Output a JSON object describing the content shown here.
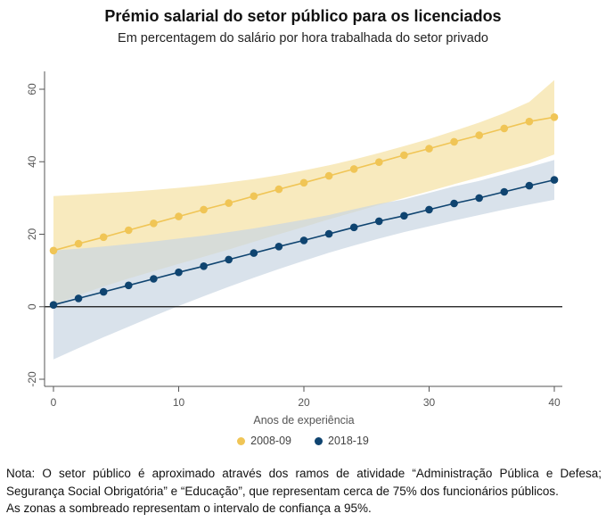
{
  "title": "Prémio salarial do setor público para os licenciados",
  "subtitle": "Em percentagem do salário por hora trabalhada do setor privado",
  "chart_data": {
    "type": "line",
    "xlabel": "Anos de experiência",
    "ylabel": "",
    "xlim": [
      0,
      40
    ],
    "ylim": [
      -22,
      65
    ],
    "xticks": [
      0,
      10,
      20,
      30,
      40
    ],
    "yticks": [
      -20,
      0,
      20,
      40,
      60
    ],
    "x": [
      0,
      2,
      4,
      6,
      8,
      10,
      12,
      14,
      16,
      18,
      20,
      22,
      24,
      26,
      28,
      30,
      32,
      34,
      36,
      38,
      40
    ],
    "series": [
      {
        "name": "2008-09",
        "color": "#f0c556",
        "band_color": "#f7e6b3",
        "values": [
          15.5,
          17.4,
          19.2,
          21.1,
          23.0,
          24.9,
          26.8,
          28.6,
          30.5,
          32.4,
          34.2,
          36.1,
          38.0,
          39.9,
          41.8,
          43.6,
          45.5,
          47.3,
          49.2,
          51.1,
          52.3
        ],
        "ci_lower": [
          0.5,
          3.2,
          5.6,
          7.8,
          9.8,
          11.8,
          13.8,
          15.8,
          17.9,
          20.0,
          22.0,
          24.1,
          26.1,
          28.1,
          30.0,
          31.9,
          33.8,
          35.7,
          37.6,
          39.5,
          42.0
        ],
        "ci_upper": [
          30.5,
          30.9,
          31.3,
          31.7,
          32.2,
          32.8,
          33.5,
          34.3,
          35.2,
          36.3,
          37.6,
          39.0,
          40.6,
          42.4,
          44.3,
          46.3,
          48.5,
          50.8,
          53.4,
          56.5,
          62.5
        ]
      },
      {
        "name": "2018-19",
        "color": "#0f4470",
        "band_color": "#c9d6e3",
        "values": [
          0.5,
          2.3,
          4.1,
          5.9,
          7.7,
          9.5,
          11.2,
          13.0,
          14.8,
          16.6,
          18.3,
          20.1,
          21.9,
          23.6,
          25.1,
          26.8,
          28.5,
          30.0,
          31.7,
          33.4,
          35.0
        ],
        "ci_lower": [
          -14.5,
          -11.4,
          -8.4,
          -5.5,
          -2.6,
          0.2,
          2.9,
          5.5,
          8.0,
          10.4,
          12.7,
          14.9,
          16.9,
          18.8,
          20.6,
          22.2,
          23.8,
          25.3,
          26.8,
          28.2,
          29.5
        ],
        "ci_upper": [
          15.5,
          16.0,
          16.6,
          17.3,
          18.0,
          18.8,
          19.6,
          20.6,
          21.6,
          22.8,
          24.0,
          25.3,
          26.9,
          28.4,
          29.6,
          31.4,
          33.2,
          34.7,
          36.6,
          38.5,
          40.5
        ]
      }
    ],
    "legend": [
      "2008-09",
      "2018-19"
    ],
    "legend_position": "bottom"
  },
  "note": {
    "line1": "Nota: O setor público é aproximado através dos ramos de atividade “Administração Pública e Defesa; Segurança Social Obrigatória” e “Educação”, que representam cerca de 75% dos funcionários públicos.",
    "line2": "As zonas a sombreado representam o intervalo de confiança a 95%."
  }
}
